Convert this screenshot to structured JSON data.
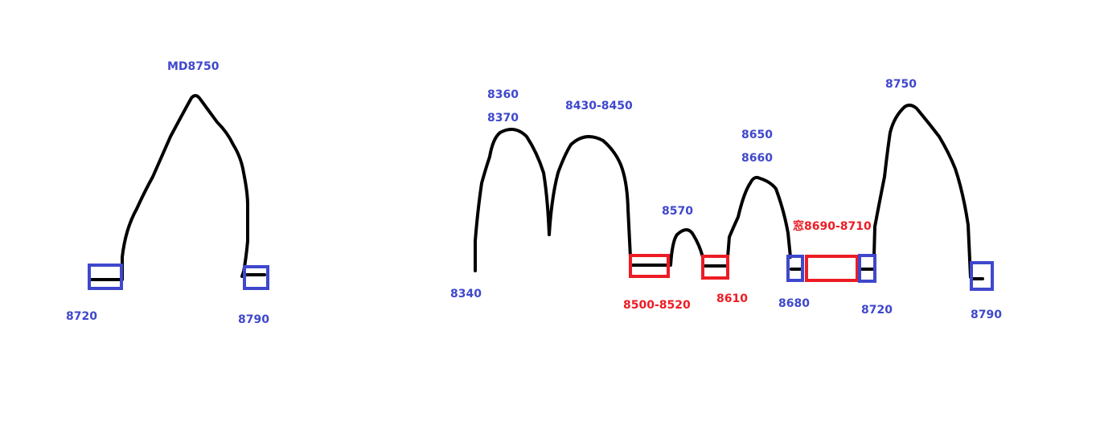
{
  "colors": {
    "blue": "#3f48cc",
    "red": "#ed1c24",
    "line": "#000000"
  },
  "left_diagram": {
    "peak_label": "MD8750",
    "left_label": "8720",
    "right_label": "8790"
  },
  "right_diagram": {
    "labels": {
      "start": "8340",
      "peak1_a": "8360",
      "peak1_b": "8370",
      "peak2": "8430-8450",
      "red1": "8500-8520",
      "peak3": "8570",
      "red2": "8610",
      "peak4_a": "8650",
      "peak4_b": "8660",
      "blue1": "8680",
      "window": "窓8690-8710",
      "blue2": "8720",
      "peak5": "8750",
      "blue3": "8790"
    }
  }
}
